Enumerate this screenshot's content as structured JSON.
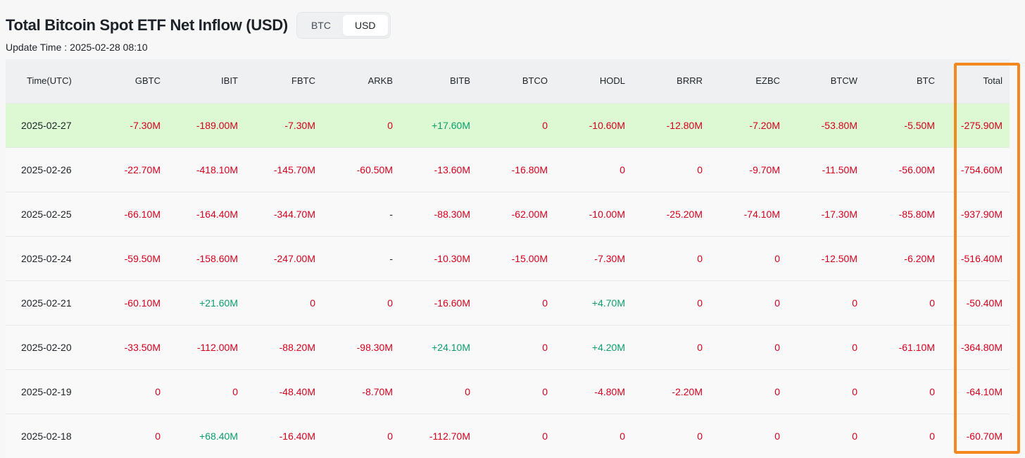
{
  "title": "Total Bitcoin Spot ETF Net Inflow (USD)",
  "toggle": {
    "options": [
      "BTC",
      "USD"
    ],
    "selected": "USD"
  },
  "update": {
    "label": "Update Time :",
    "value": "2025-02-28 08:10"
  },
  "colors": {
    "negative": "#d6001c",
    "positive": "#0b9e6d",
    "highlight": "#dcf9d3",
    "box": "#f5871f"
  },
  "table": {
    "columns": [
      "Time(UTC)",
      "GBTC",
      "IBIT",
      "FBTC",
      "ARKB",
      "BITB",
      "BTCO",
      "HODL",
      "BRRR",
      "EZBC",
      "BTCW",
      "BTC",
      "Total"
    ],
    "rows": [
      [
        "2025-02-27",
        "-7.30M",
        "-189.00M",
        "-7.30M",
        "0",
        "+17.60M",
        "0",
        "-10.60M",
        "-12.80M",
        "-7.20M",
        "-53.80M",
        "-5.50M",
        "-275.90M"
      ],
      [
        "2025-02-26",
        "-22.70M",
        "-418.10M",
        "-145.70M",
        "-60.50M",
        "-13.60M",
        "-16.80M",
        "0",
        "0",
        "-9.70M",
        "-11.50M",
        "-56.00M",
        "-754.60M"
      ],
      [
        "2025-02-25",
        "-66.10M",
        "-164.40M",
        "-344.70M",
        "-",
        "-88.30M",
        "-62.00M",
        "-10.00M",
        "-25.20M",
        "-74.10M",
        "-17.30M",
        "-85.80M",
        "-937.90M"
      ],
      [
        "2025-02-24",
        "-59.50M",
        "-158.60M",
        "-247.00M",
        "-",
        "-10.30M",
        "-15.00M",
        "-7.30M",
        "0",
        "0",
        "-12.50M",
        "-6.20M",
        "-516.40M"
      ],
      [
        "2025-02-21",
        "-60.10M",
        "+21.60M",
        "0",
        "0",
        "-16.60M",
        "0",
        "+4.70M",
        "0",
        "0",
        "0",
        "0",
        "-50.40M"
      ],
      [
        "2025-02-20",
        "-33.50M",
        "-112.00M",
        "-88.20M",
        "-98.30M",
        "+24.10M",
        "0",
        "+4.20M",
        "0",
        "0",
        "0",
        "-61.10M",
        "-364.80M"
      ],
      [
        "2025-02-19",
        "0",
        "0",
        "-48.40M",
        "-8.70M",
        "0",
        "0",
        "-4.80M",
        "-2.20M",
        "0",
        "0",
        "0",
        "-64.10M"
      ],
      [
        "2025-02-18",
        "0",
        "+68.40M",
        "-16.40M",
        "0",
        "-112.70M",
        "0",
        "0",
        "0",
        "0",
        "0",
        "0",
        "-60.70M"
      ]
    ]
  }
}
